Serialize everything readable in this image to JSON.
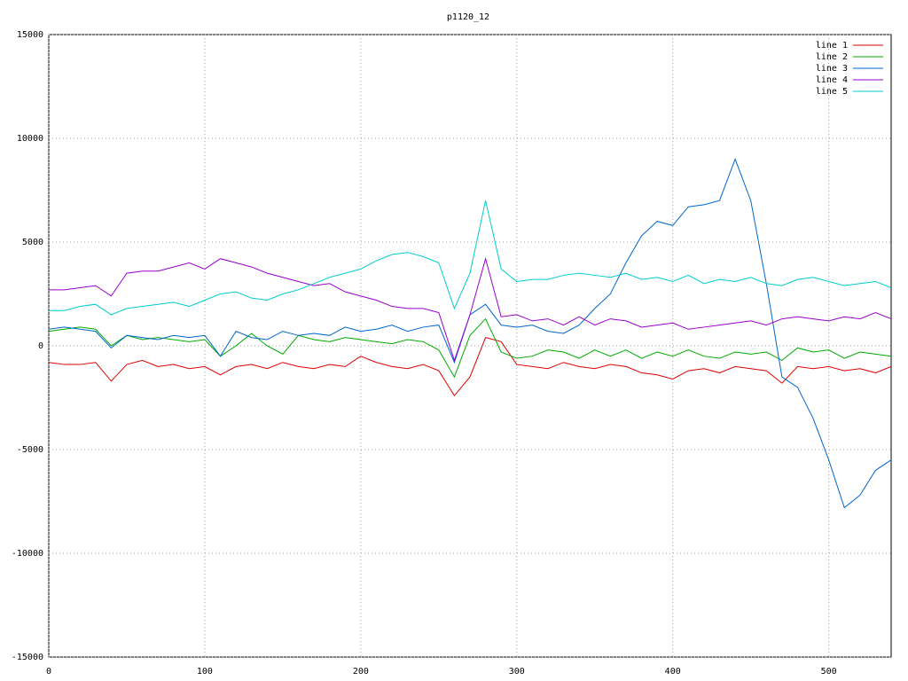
{
  "chart_data": {
    "type": "line",
    "title": "p1120_12",
    "x": [
      0,
      10,
      20,
      30,
      40,
      50,
      60,
      70,
      80,
      90,
      100,
      110,
      120,
      130,
      140,
      150,
      160,
      170,
      180,
      190,
      200,
      210,
      220,
      230,
      240,
      250,
      260,
      270,
      280,
      290,
      300,
      310,
      320,
      330,
      340,
      350,
      360,
      370,
      380,
      390,
      400,
      410,
      420,
      430,
      440,
      450,
      460,
      470,
      480,
      490,
      500,
      510,
      520,
      530,
      540
    ],
    "series": [
      {
        "name": "line 1",
        "color": "#dd0000",
        "values": [
          -800,
          -900,
          -900,
          -800,
          -1700,
          -900,
          -700,
          -1000,
          -900,
          -1100,
          -1000,
          -1400,
          -1000,
          -900,
          -1100,
          -800,
          -1000,
          -1100,
          -900,
          -1000,
          -500,
          -800,
          -1000,
          -1100,
          -900,
          -1200,
          -2400,
          -1500,
          400,
          200,
          -900,
          -1000,
          -1100,
          -800,
          -1000,
          -1100,
          -900,
          -1000,
          -1300,
          -1400,
          -1600,
          -1200,
          -1100,
          -1300,
          -1000,
          -1100,
          -1200,
          -1800,
          -1000,
          -1100,
          -1000,
          -1200,
          -1100,
          -1300,
          -1000
        ]
      },
      {
        "name": "line 2",
        "color": "#00aa00",
        "values": [
          700,
          800,
          900,
          800,
          0,
          500,
          300,
          400,
          300,
          200,
          300,
          -500,
          0,
          600,
          0,
          -400,
          500,
          300,
          200,
          400,
          300,
          200,
          100,
          300,
          200,
          -200,
          -1500,
          500,
          1300,
          -300,
          -600,
          -500,
          -200,
          -300,
          -600,
          -200,
          -500,
          -200,
          -600,
          -300,
          -500,
          -200,
          -500,
          -600,
          -300,
          -400,
          -300,
          -700,
          -100,
          -300,
          -200,
          -600,
          -300,
          -400,
          -500
        ]
      },
      {
        "name": "line 3",
        "color": "#0066cc",
        "values": [
          800,
          900,
          800,
          700,
          -100,
          500,
          400,
          300,
          500,
          400,
          500,
          -500,
          700,
          400,
          300,
          700,
          500,
          600,
          500,
          900,
          700,
          800,
          1000,
          700,
          900,
          1000,
          -800,
          1500,
          2000,
          1000,
          900,
          1000,
          700,
          600,
          1000,
          1800,
          2500,
          4000,
          5300,
          6000,
          5800,
          6700,
          6800,
          7000,
          9000,
          7000,
          3000,
          -1500,
          -2000,
          -3500,
          -5500,
          -7800,
          -7200,
          -6000,
          -5500
        ]
      },
      {
        "name": "line 4",
        "color": "#9900cc",
        "values": [
          2700,
          2700,
          2800,
          2900,
          2400,
          3500,
          3600,
          3600,
          3800,
          4000,
          3700,
          4200,
          4000,
          3800,
          3500,
          3300,
          3100,
          2900,
          3000,
          2600,
          2400,
          2200,
          1900,
          1800,
          1800,
          1600,
          -700,
          1500,
          4200,
          1400,
          1500,
          1200,
          1300,
          1000,
          1400,
          1000,
          1300,
          1200,
          900,
          1000,
          1100,
          800,
          900,
          1000,
          1100,
          1200,
          1000,
          1300,
          1400,
          1300,
          1200,
          1400,
          1300,
          1600,
          1300
        ]
      },
      {
        "name": "line 5",
        "color": "#00cccc",
        "values": [
          1700,
          1700,
          1900,
          2000,
          1500,
          1800,
          1900,
          2000,
          2100,
          1900,
          2200,
          2500,
          2600,
          2300,
          2200,
          2500,
          2700,
          3000,
          3300,
          3500,
          3700,
          4100,
          4400,
          4500,
          4300,
          4000,
          1800,
          3500,
          7000,
          3700,
          3100,
          3200,
          3200,
          3400,
          3500,
          3400,
          3300,
          3500,
          3200,
          3300,
          3100,
          3400,
          3000,
          3200,
          3100,
          3300,
          3000,
          2900,
          3200,
          3300,
          3100,
          2900,
          3000,
          3100,
          2800
        ]
      }
    ],
    "xlim": [
      0,
      540
    ],
    "xticks": [
      0,
      100,
      200,
      300,
      400,
      500
    ],
    "ylim": [
      -15000,
      15000
    ],
    "yticks": [
      -15000,
      -10000,
      -5000,
      0,
      5000,
      10000,
      15000
    ],
    "grid": true,
    "legend": "top-right"
  }
}
